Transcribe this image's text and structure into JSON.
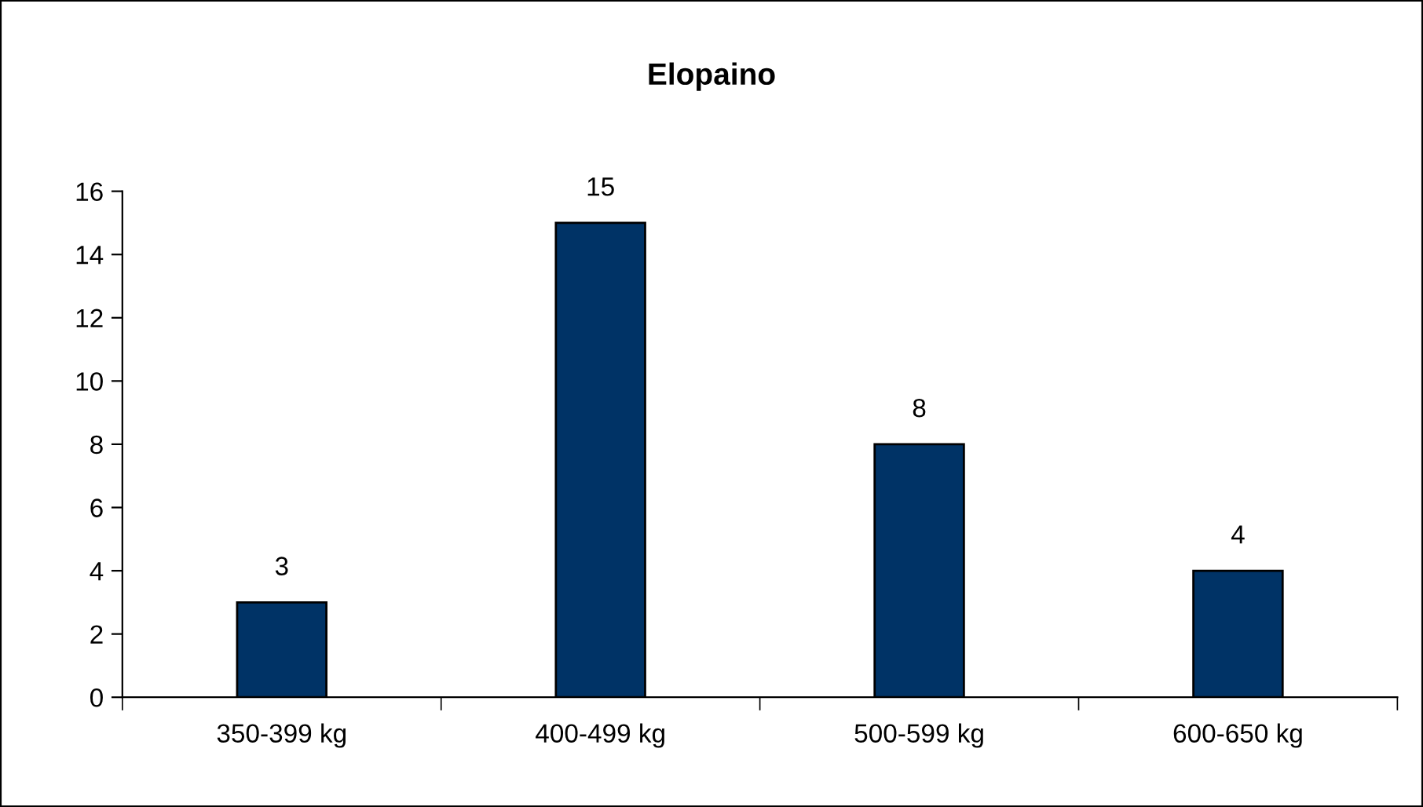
{
  "chart_data": {
    "type": "bar",
    "title": "Elopaino",
    "categories": [
      "350-399 kg",
      "400-499 kg",
      "500-599 kg",
      "600-650 kg"
    ],
    "values": [
      3,
      15,
      8,
      4
    ],
    "color": "#003366",
    "ylim": [
      0,
      16
    ],
    "yticks": [
      0,
      2,
      4,
      6,
      8,
      10,
      12,
      14,
      16
    ],
    "data_labels": true,
    "grid": false,
    "legend": false
  }
}
